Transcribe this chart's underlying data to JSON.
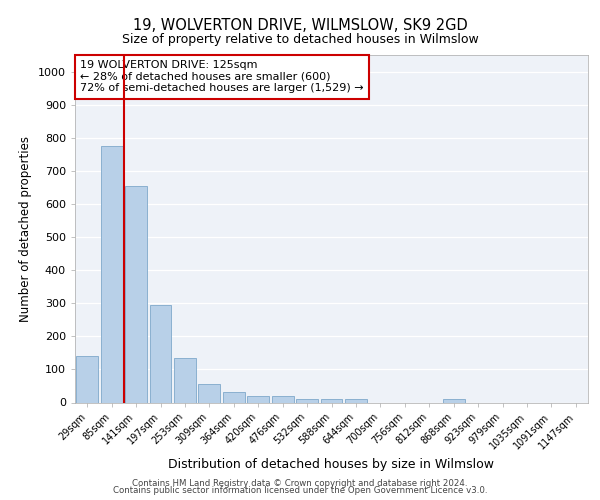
{
  "title1": "19, WOLVERTON DRIVE, WILMSLOW, SK9 2GD",
  "title2": "Size of property relative to detached houses in Wilmslow",
  "xlabel": "Distribution of detached houses by size in Wilmslow",
  "ylabel": "Number of detached properties",
  "categories": [
    "29sqm",
    "85sqm",
    "141sqm",
    "197sqm",
    "253sqm",
    "309sqm",
    "364sqm",
    "420sqm",
    "476sqm",
    "532sqm",
    "588sqm",
    "644sqm",
    "700sqm",
    "756sqm",
    "812sqm",
    "868sqm",
    "923sqm",
    "979sqm",
    "1035sqm",
    "1091sqm",
    "1147sqm"
  ],
  "values": [
    140,
    775,
    655,
    295,
    135,
    57,
    33,
    20,
    20,
    12,
    10,
    10,
    0,
    0,
    0,
    10,
    0,
    0,
    0,
    0,
    0
  ],
  "bar_color": "#b8d0e8",
  "bar_edge_color": "#8ab0d0",
  "vline_color": "#cc0000",
  "annotation_text": "19 WOLVERTON DRIVE: 125sqm\n← 28% of detached houses are smaller (600)\n72% of semi-detached houses are larger (1,529) →",
  "annotation_box_color": "#ffffff",
  "annotation_box_edge": "#cc0000",
  "ylim": [
    0,
    1050
  ],
  "yticks": [
    0,
    100,
    200,
    300,
    400,
    500,
    600,
    700,
    800,
    900,
    1000
  ],
  "background_color": "#eef2f8",
  "footer1": "Contains HM Land Registry data © Crown copyright and database right 2024.",
  "footer2": "Contains public sector information licensed under the Open Government Licence v3.0."
}
